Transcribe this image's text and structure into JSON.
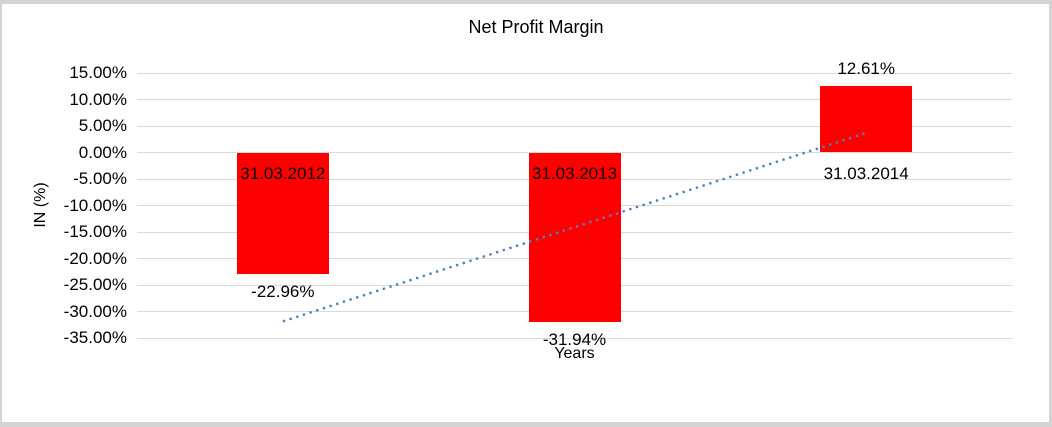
{
  "chart_data": {
    "type": "bar",
    "title": "Net Profit Margin",
    "categories": [
      "31.03.2012",
      "31.03.2013",
      "31.03.2014"
    ],
    "values": [
      -22.96,
      -31.94,
      12.61
    ],
    "data_labels": [
      "-22.96%",
      "-31.94%",
      "12.61%"
    ],
    "xlabel": "Years",
    "ylabel": "IN (%)",
    "ylim": [
      -35,
      15
    ],
    "ytick_step": 5,
    "ytick_labels": [
      "15.00%",
      "10.00%",
      "5.00%",
      "0.00%",
      "-5.00%",
      "-10.00%",
      "-15.00%",
      "-20.00%",
      "-25.00%",
      "-30.00%",
      "-35.00%"
    ],
    "grid": true,
    "legend": "none",
    "bar_color": "#ff0000",
    "gridline_color": "#d9d9d9",
    "frame_color": "#d4d4d4",
    "trendline": {
      "type": "linear",
      "style": "dotted",
      "color": "#4f81bd",
      "start_pct": -31.87,
      "end_pct": 3.69
    }
  }
}
